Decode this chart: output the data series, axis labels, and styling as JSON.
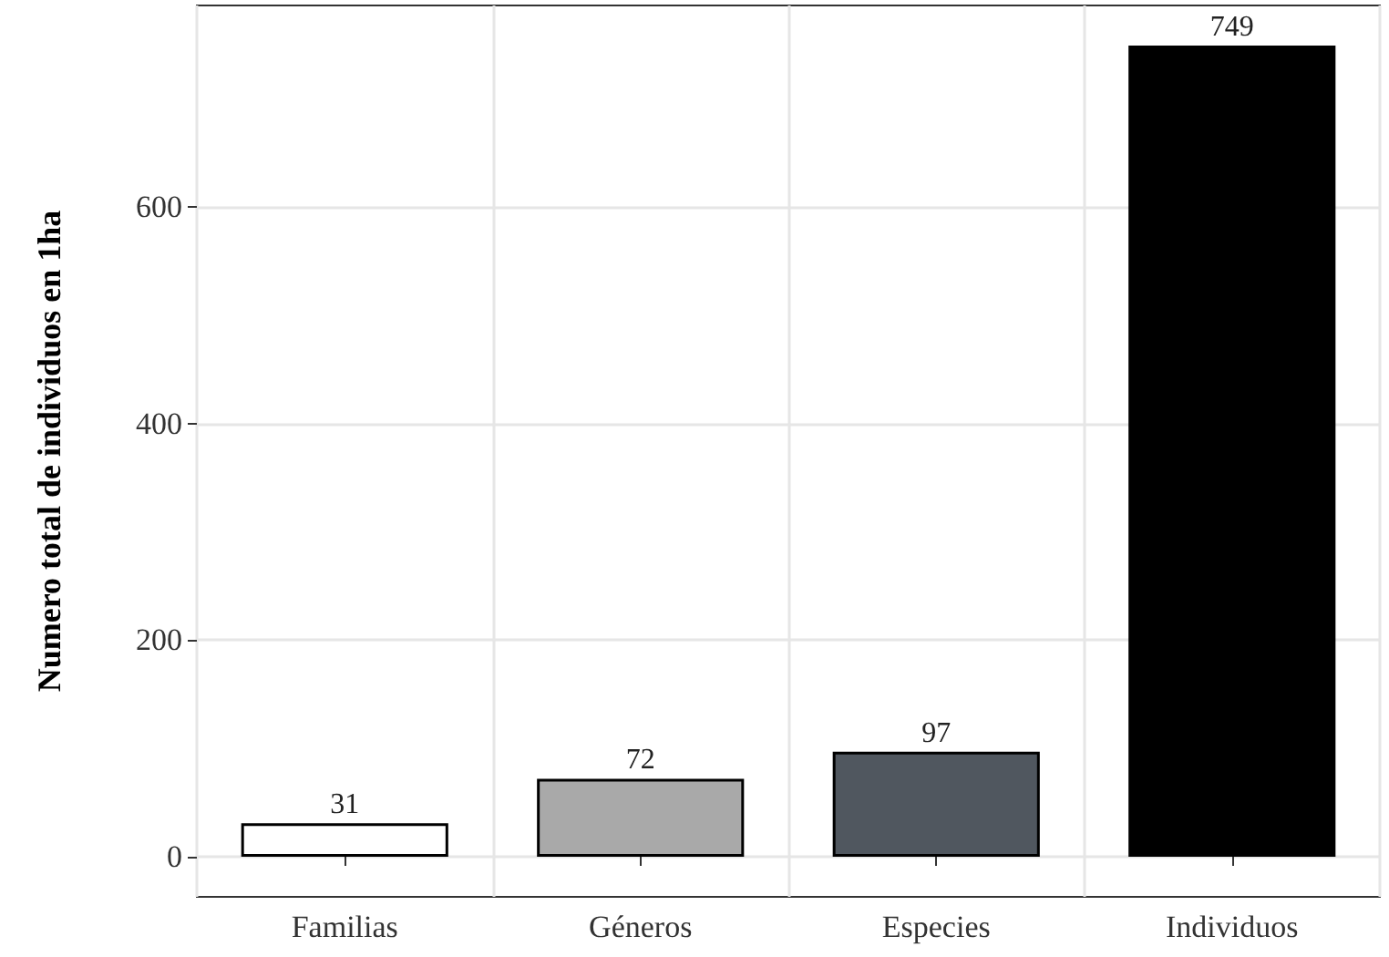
{
  "chart_data": {
    "type": "bar",
    "ylabel": "Numero total de individuos en 1ha",
    "categories": [
      "Familias",
      "Géneros",
      "Especies",
      "Individuos"
    ],
    "values": [
      31,
      72,
      97,
      749
    ],
    "colors": [
      "#ffffff",
      "#a9a9a9",
      "#50575f",
      "#000000"
    ],
    "ylim": [
      -37,
      786
    ],
    "yticks": [
      0,
      200,
      400,
      600
    ],
    "grid": true,
    "data_labels": true
  }
}
